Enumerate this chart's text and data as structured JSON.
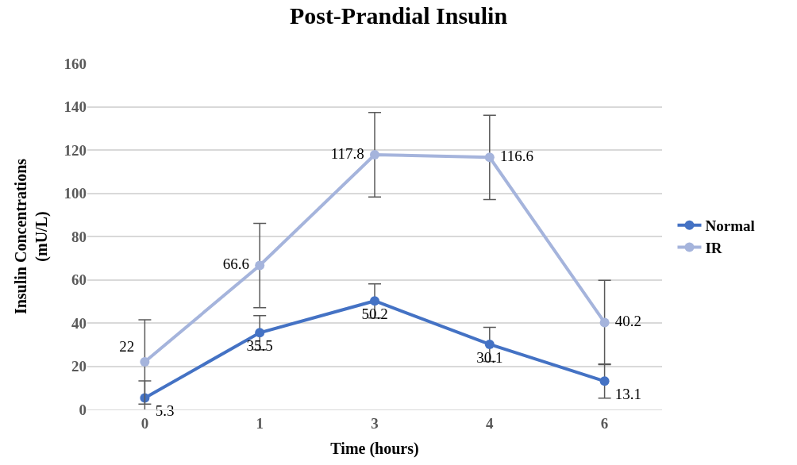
{
  "chart_data": {
    "type": "line",
    "title": "Post-Prandial Insulin",
    "xlabel": "Time (hours)",
    "ylabel": "Insulin Concentrations\n(mU/L)",
    "categories": [
      "0",
      "1",
      "3",
      "4",
      "6"
    ],
    "series": [
      {
        "name": "Normal",
        "color": "#4472c4",
        "values": [
          5.3,
          35.5,
          50.2,
          30.1,
          13.1
        ],
        "errors": [
          7.9,
          7.9,
          7.9,
          7.9,
          7.9
        ]
      },
      {
        "name": "IR",
        "color": "#a5b4dc",
        "values": [
          22,
          66.6,
          117.8,
          116.6,
          40.2
        ],
        "errors": [
          19.5,
          19.5,
          19.5,
          19.5,
          19.5
        ]
      }
    ],
    "ylim": [
      0,
      160
    ],
    "yticks": [
      0,
      20,
      40,
      60,
      80,
      100,
      120,
      140,
      160
    ],
    "grid": "y",
    "legend": "right",
    "marker": "circle",
    "line_style": "solid",
    "data_labels": true
  }
}
